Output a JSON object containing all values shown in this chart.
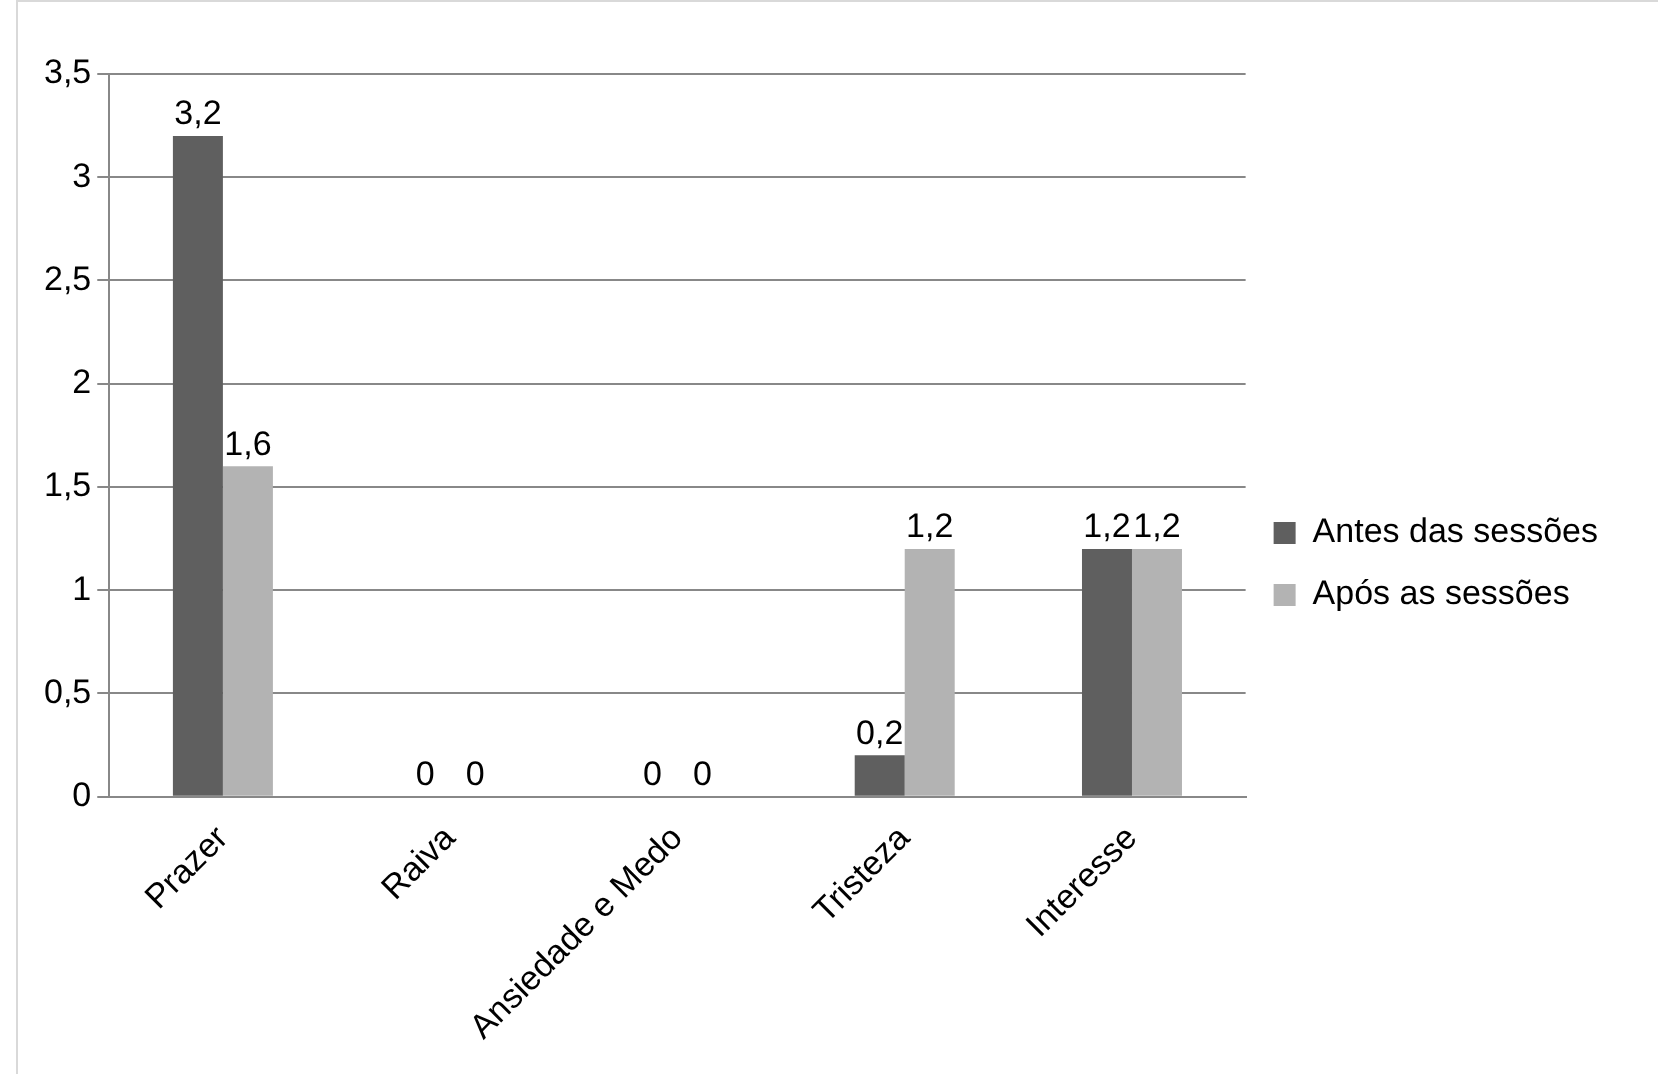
{
  "chart_data": {
    "type": "bar",
    "categories": [
      "Prazer",
      "Raiva",
      "Ansiedade e Medo",
      "Tristeza",
      "Interesse"
    ],
    "series": [
      {
        "name": "Antes das sessões",
        "color": "#5f5f5f",
        "values": [
          3.2,
          0,
          0,
          0.2,
          1.2
        ],
        "value_labels": [
          "3,2",
          "0",
          "0",
          "0,2",
          "1,2"
        ]
      },
      {
        "name": "Após as sessões",
        "color": "#b3b3b3",
        "values": [
          1.6,
          0,
          0,
          1.2,
          1.2
        ],
        "value_labels": [
          "1,6",
          "0",
          "0",
          "1,2",
          "1,2"
        ]
      }
    ],
    "ylim": [
      0,
      3.5
    ],
    "yticks": [
      {
        "value": 0,
        "label": "0"
      },
      {
        "value": 0.5,
        "label": "0,5"
      },
      {
        "value": 1,
        "label": "1"
      },
      {
        "value": 1.5,
        "label": "1,5"
      },
      {
        "value": 2,
        "label": "2"
      },
      {
        "value": 2.5,
        "label": "2,5"
      },
      {
        "value": 3,
        "label": "3"
      },
      {
        "value": 3.5,
        "label": "3,5"
      }
    ],
    "grid": "y",
    "legend": "right"
  }
}
